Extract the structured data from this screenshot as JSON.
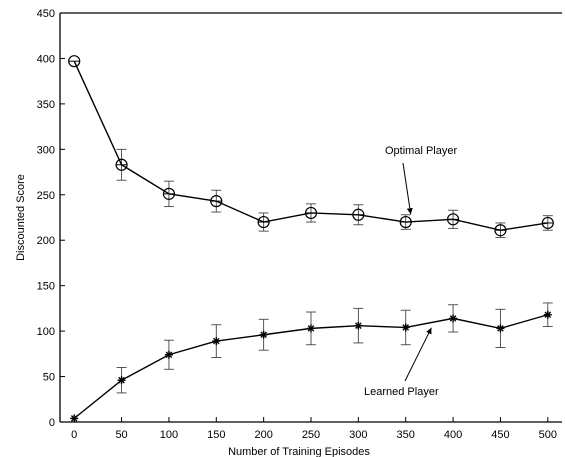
{
  "chart_data": {
    "type": "line",
    "xlabel": "Number of Training Episodes",
    "ylabel": "Discounted Score",
    "xlim": [
      -15,
      515
    ],
    "ylim": [
      0,
      450
    ],
    "x_ticks": [
      0,
      50,
      100,
      150,
      200,
      250,
      300,
      350,
      400,
      450,
      500
    ],
    "y_ticks": [
      0,
      50,
      100,
      150,
      200,
      250,
      300,
      350,
      400,
      450
    ],
    "grid": false,
    "x": [
      0,
      50,
      100,
      150,
      200,
      250,
      300,
      350,
      400,
      450,
      500
    ],
    "series": [
      {
        "name": "Optimal Player",
        "marker": "circle",
        "values": [
          397,
          283,
          251,
          243,
          220,
          230,
          228,
          220,
          223,
          211,
          219
        ],
        "error": [
          0,
          17,
          14,
          12,
          10,
          10,
          11,
          8,
          10,
          8,
          8
        ]
      },
      {
        "name": "Learned Player",
        "marker": "star",
        "values": [
          4,
          46,
          74,
          89,
          96,
          103,
          106,
          104,
          114,
          103,
          118
        ],
        "error": [
          0,
          14,
          16,
          18,
          17,
          18,
          19,
          19,
          15,
          21,
          13
        ]
      }
    ],
    "annotations": [
      {
        "text": "Optimal Player",
        "series": 0,
        "target_x": 350,
        "target_y": 222
      },
      {
        "text": "Learned Player",
        "series": 1,
        "target_x": 375,
        "target_y": 108
      }
    ]
  }
}
